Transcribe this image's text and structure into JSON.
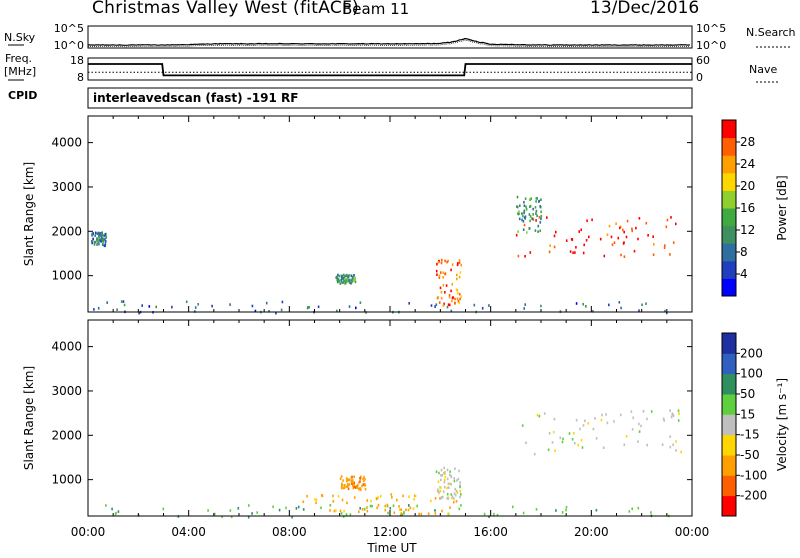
{
  "header": {
    "title": "Christmas Valley West (fitACF)",
    "beam": "Beam 11",
    "date": "13/Dec/2016"
  },
  "strip_labels": {
    "nsky": "N.Sky",
    "nsky_ticks": [
      "10^5",
      "10^0"
    ],
    "nsearch": "N.Search",
    "nsearch_ticks": [
      "10^5",
      "10^0"
    ],
    "freq_line1": "Freq.",
    "freq_line2": "[MHz]",
    "freq_ticks": [
      "18",
      "8"
    ],
    "nave": "Nave",
    "nave_ticks": [
      "60",
      "0"
    ],
    "cpid": "CPID",
    "cpid_text": "interleavedscan (fast) -191 RF"
  },
  "chart_data": [
    {
      "type": "line",
      "name": "noise",
      "x": [
        0,
        1,
        2,
        3,
        4,
        5,
        6,
        7,
        8,
        9,
        10,
        11,
        12,
        13,
        14,
        14.5,
        15,
        15.5,
        16,
        17,
        18,
        19,
        20,
        21,
        22,
        23,
        24
      ],
      "sky_log": [
        0.5,
        0.5,
        0.5,
        0.5,
        0.6,
        0.8,
        0.8,
        0.8,
        0.8,
        0.8,
        0.8,
        0.8,
        0.8,
        0.8,
        0.9,
        1.3,
        2.1,
        1.3,
        0.7,
        0.6,
        0.5,
        0.5,
        0.5,
        0.5,
        0.5,
        0.5,
        0.5
      ],
      "ylim_log": [
        0,
        5
      ]
    },
    {
      "type": "line",
      "name": "frequency",
      "x": [
        0,
        2.95,
        3.0,
        14.95,
        15.0,
        24
      ],
      "freq_mhz": [
        15.5,
        15.5,
        9.8,
        9.8,
        15.5,
        15.5
      ],
      "nave": [
        20,
        20,
        20,
        20,
        20,
        20
      ],
      "ylim": [
        8,
        18
      ]
    },
    {
      "type": "heatmap",
      "name": "power",
      "xlabel": "",
      "ylabel": "Slant Range [km]",
      "xlim": [
        0,
        24
      ],
      "ylim": [
        180,
        4600
      ],
      "yticks": [
        "1000",
        "2000",
        "3000",
        "4000"
      ],
      "colorbar": {
        "label": "Power [dB]",
        "ticks": [
          "4",
          "8",
          "12",
          "16",
          "20",
          "24",
          "28"
        ],
        "range": [
          0,
          32
        ]
      },
      "regions": [
        {
          "t0": 0.1,
          "t1": 24,
          "r0": 180,
          "r1": 450,
          "value": 8
        },
        {
          "t0": 0.1,
          "t1": 0.7,
          "r0": 1700,
          "r1": 2000,
          "value": 9
        },
        {
          "t0": 9.8,
          "t1": 10.6,
          "r0": 850,
          "r1": 1050,
          "value": 12
        },
        {
          "t0": 13.8,
          "t1": 14.8,
          "r0": 350,
          "r1": 1400,
          "value": 26
        },
        {
          "t0": 17.0,
          "t1": 23.6,
          "r0": 1450,
          "r1": 2350,
          "value": 30
        },
        {
          "t0": 17.0,
          "t1": 18.0,
          "r0": 2000,
          "r1": 2800,
          "value": 12
        }
      ]
    },
    {
      "type": "heatmap",
      "name": "velocity",
      "xlabel": "Time UT",
      "ylabel": "Slant Range [km]",
      "xlim": [
        0,
        24
      ],
      "ylim": [
        180,
        4600
      ],
      "xticks": [
        "00:00",
        "04:00",
        "08:00",
        "12:00",
        "16:00",
        "20:00",
        "00:00"
      ],
      "yticks": [
        "1000",
        "2000",
        "3000",
        "4000"
      ],
      "colorbar": {
        "label": "Velocity [m s⁻¹]",
        "ticks": [
          "200",
          "100",
          "50",
          "15",
          "-15",
          "-50",
          "-100",
          "-200"
        ]
      },
      "regions": [
        {
          "t0": 0.1,
          "t1": 24,
          "r0": 180,
          "r1": 450,
          "value": 40
        },
        {
          "t0": 8.5,
          "t1": 15.0,
          "r0": 250,
          "r1": 700,
          "value": -60
        },
        {
          "t0": 10.0,
          "t1": 11.0,
          "r0": 800,
          "r1": 1100,
          "value": -80
        },
        {
          "t0": 13.8,
          "t1": 14.8,
          "r0": 600,
          "r1": 1300,
          "value": 0
        },
        {
          "t0": 17.0,
          "t1": 23.6,
          "r0": 1600,
          "r1": 2600,
          "value": 0
        }
      ]
    }
  ]
}
